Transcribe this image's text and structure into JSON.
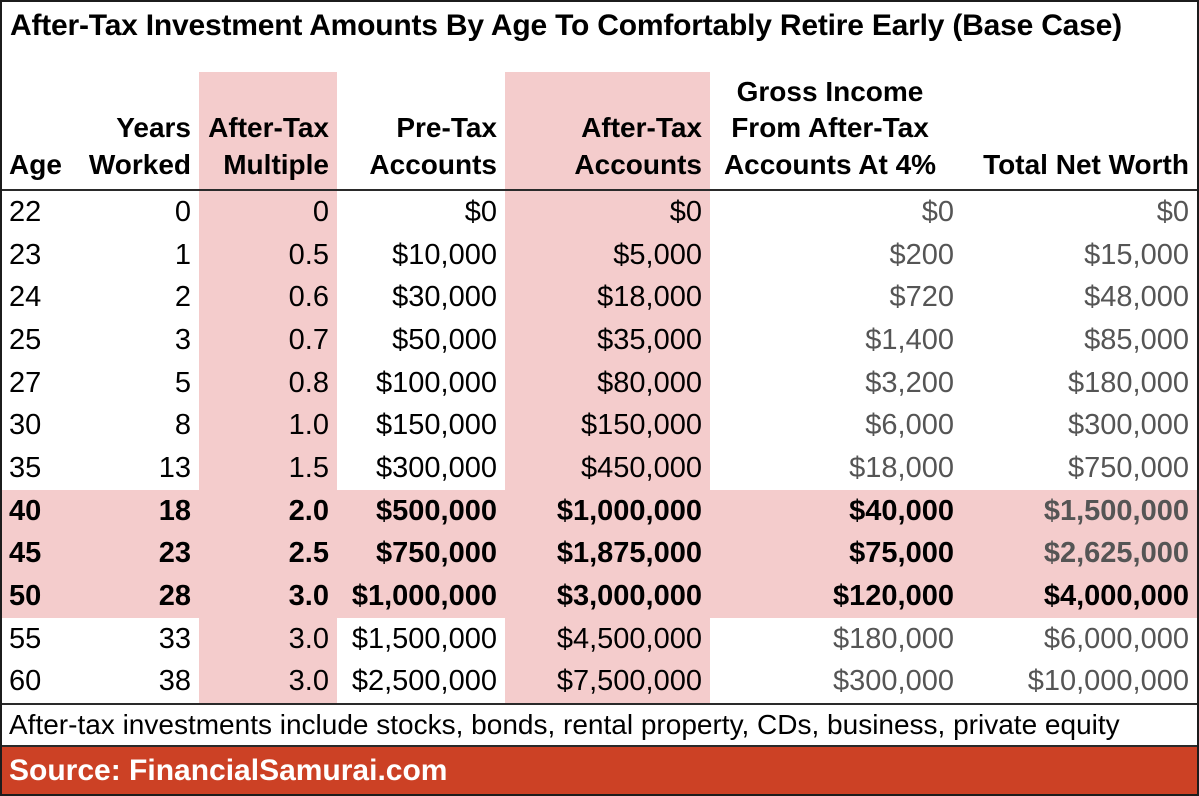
{
  "colors": {
    "highlight_pink": "#f4cccc",
    "source_bar_red": "#cc4125",
    "dim_text_gray": "#555555",
    "text_black": "#000000"
  },
  "chart_data": {
    "type": "table",
    "title": "After-Tax Investment Amounts By Age To Comfortably Retire Early (Base Case)",
    "columns": [
      {
        "key": "age",
        "label": "Age",
        "align": "left",
        "pink": false
      },
      {
        "key": "years_worked",
        "label": "Years\nWorked",
        "align": "right",
        "pink": false
      },
      {
        "key": "after_tax_multiple",
        "label": "After-Tax\nMultiple",
        "align": "right",
        "pink": true
      },
      {
        "key": "pre_tax_accounts",
        "label": "Pre-Tax\nAccounts",
        "align": "right",
        "pink": false
      },
      {
        "key": "after_tax_accounts",
        "label": "After-Tax\nAccounts",
        "align": "right",
        "pink": true
      },
      {
        "key": "gross_income_4pct",
        "label": "Gross Income\nFrom After-Tax\nAccounts At 4%",
        "align": "center",
        "pink": false
      },
      {
        "key": "total_net_worth",
        "label": "Total Net Worth",
        "align": "right",
        "pink": false
      }
    ],
    "rows": [
      {
        "cells": [
          "22",
          "0",
          "0",
          "$0",
          "$0",
          "$0",
          "$0"
        ],
        "bold": false,
        "highlight": false,
        "total_black": false
      },
      {
        "cells": [
          "23",
          "1",
          "0.5",
          "$10,000",
          "$5,000",
          "$200",
          "$15,000"
        ],
        "bold": false,
        "highlight": false,
        "total_black": false
      },
      {
        "cells": [
          "24",
          "2",
          "0.6",
          "$30,000",
          "$18,000",
          "$720",
          "$48,000"
        ],
        "bold": false,
        "highlight": false,
        "total_black": false
      },
      {
        "cells": [
          "25",
          "3",
          "0.7",
          "$50,000",
          "$35,000",
          "$1,400",
          "$85,000"
        ],
        "bold": false,
        "highlight": false,
        "total_black": false
      },
      {
        "cells": [
          "27",
          "5",
          "0.8",
          "$100,000",
          "$80,000",
          "$3,200",
          "$180,000"
        ],
        "bold": false,
        "highlight": false,
        "total_black": false
      },
      {
        "cells": [
          "30",
          "8",
          "1.0",
          "$150,000",
          "$150,000",
          "$6,000",
          "$300,000"
        ],
        "bold": false,
        "highlight": false,
        "total_black": false
      },
      {
        "cells": [
          "35",
          "13",
          "1.5",
          "$300,000",
          "$450,000",
          "$18,000",
          "$750,000"
        ],
        "bold": false,
        "highlight": false,
        "total_black": false
      },
      {
        "cells": [
          "40",
          "18",
          "2.0",
          "$500,000",
          "$1,000,000",
          "$40,000",
          "$1,500,000"
        ],
        "bold": true,
        "highlight": true,
        "total_black": false
      },
      {
        "cells": [
          "45",
          "23",
          "2.5",
          "$750,000",
          "$1,875,000",
          "$75,000",
          "$2,625,000"
        ],
        "bold": true,
        "highlight": true,
        "total_black": false
      },
      {
        "cells": [
          "50",
          "28",
          "3.0",
          "$1,000,000",
          "$3,000,000",
          "$120,000",
          "$4,000,000"
        ],
        "bold": true,
        "highlight": true,
        "total_black": true
      },
      {
        "cells": [
          "55",
          "33",
          "3.0",
          "$1,500,000",
          "$4,500,000",
          "$180,000",
          "$6,000,000"
        ],
        "bold": false,
        "highlight": false,
        "total_black": false
      },
      {
        "cells": [
          "60",
          "38",
          "3.0",
          "$2,500,000",
          "$7,500,000",
          "$300,000",
          "$10,000,000"
        ],
        "bold": false,
        "highlight": false,
        "total_black": false
      }
    ],
    "highlighted_ages": [
      40,
      45,
      50
    ],
    "footnote": "After-tax investments include stocks, bonds, rental property, CDs, business, private equity",
    "source": "Source: FinancialSamurai.com"
  }
}
